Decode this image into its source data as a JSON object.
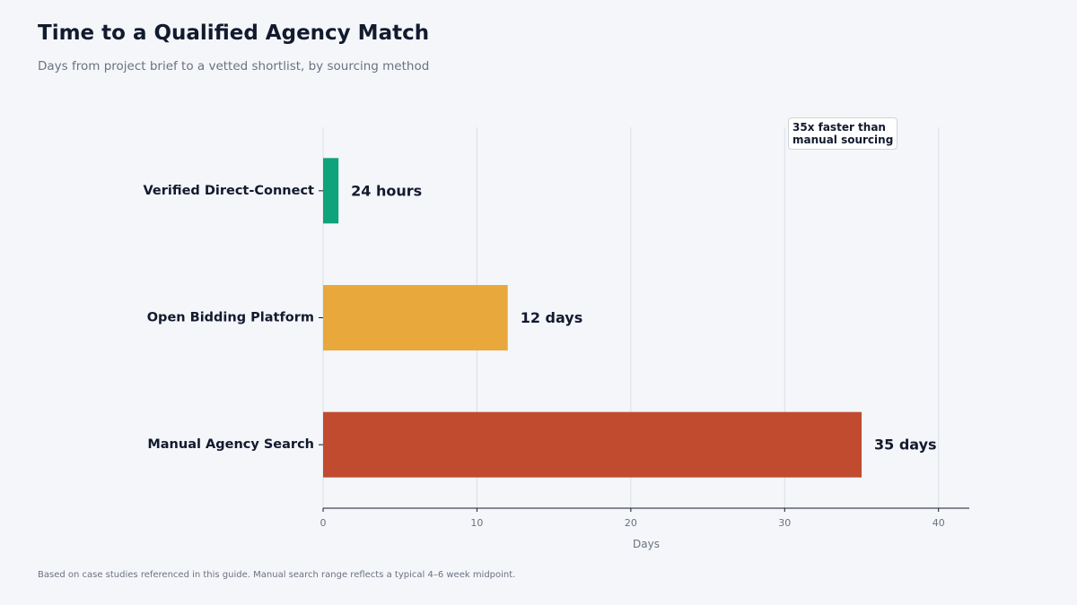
{
  "header": {
    "title": "Time to a Qualified Agency Match",
    "subtitle": "Days from project brief to a vetted shortlist, by sourcing method"
  },
  "footer": {
    "note": "Based on case studies referenced in this guide. Manual search range reflects a typical 4–6 week midpoint."
  },
  "annotation": {
    "line1": "35x faster than",
    "line2": "manual sourcing"
  },
  "chart_data": {
    "type": "bar",
    "orientation": "horizontal",
    "categories": [
      "Verified Direct-Connect",
      "Open Bidding Platform",
      "Manual Agency Search"
    ],
    "values": [
      1,
      12,
      35
    ],
    "value_labels": [
      "24 hours",
      "12 days",
      "35 days"
    ],
    "colors": [
      "#0ea37b",
      "#e8a83c",
      "#c14b2e"
    ],
    "xlabel": "Days",
    "ylabel": "",
    "xlim": [
      0,
      42
    ],
    "xticks": [
      0,
      10,
      20,
      30,
      40
    ],
    "grid": true
  }
}
